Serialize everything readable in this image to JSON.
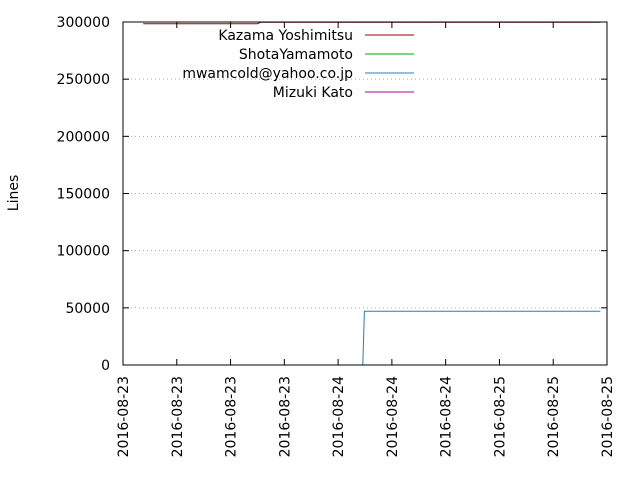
{
  "chart_data": {
    "type": "line",
    "title": "",
    "xlabel": "",
    "ylabel": "Lines",
    "ylim": [
      0,
      300000
    ],
    "y_ticks": [
      0,
      50000,
      100000,
      150000,
      200000,
      250000,
      300000
    ],
    "x_tick_labels": [
      "2016-08-23",
      "2016-08-23",
      "2016-08-23",
      "2016-08-23",
      "2016-08-24",
      "2016-08-24",
      "2016-08-24",
      "2016-08-25",
      "2016-08-25",
      "2016-08-25"
    ],
    "grid": "horizontal dotted",
    "legend_position": "top-right",
    "series": [
      {
        "name": "Kazama Yoshimitsu",
        "color": "#990000",
        "points": [
          {
            "x": "2016-08-23 03:00",
            "y": 298500
          },
          {
            "x": "2016-08-23 20:00",
            "y": 298500
          },
          {
            "x": "2016-08-23 20:30",
            "y": 299800
          },
          {
            "x": "2016-08-25 23:00",
            "y": 299800
          }
        ]
      },
      {
        "name": "ShotaYamamoto",
        "color": "#00aa00",
        "points": [
          {
            "x": "2016-08-23 03:00",
            "y": 0
          },
          {
            "x": "2016-08-25 23:00",
            "y": 0
          }
        ]
      },
      {
        "name": "mwamcold@yahoo.co.jp",
        "color": "#2c7ab8",
        "points": [
          {
            "x": "2016-08-24 11:40",
            "y": 0
          },
          {
            "x": "2016-08-24 11:55",
            "y": 47000
          },
          {
            "x": "2016-08-25 23:00",
            "y": 47000
          }
        ]
      },
      {
        "name": "Mizuki Kato",
        "color": "#aa00aa",
        "points": [
          {
            "x": "2016-08-23 03:00",
            "y": 0
          },
          {
            "x": "2016-08-25 23:00",
            "y": 0
          }
        ]
      }
    ]
  }
}
